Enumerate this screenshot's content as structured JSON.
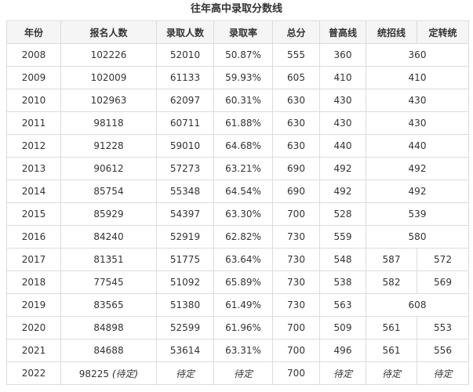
{
  "title": "往年高中录取分数线",
  "table": {
    "header": [
      "年份",
      "报名人数",
      "录取人数",
      "录取率",
      "总分",
      "普高线",
      "统招线",
      "定转统"
    ],
    "rows": [
      [
        "2008",
        "102226",
        "52010",
        "50.87%",
        "555",
        "360",
        "360"
      ],
      [
        "2009",
        "102009",
        "61133",
        "59.93%",
        "605",
        "410",
        "410"
      ],
      [
        "2010",
        "102963",
        "62097",
        "60.31%",
        "630",
        "430",
        "430"
      ],
      [
        "2011",
        "98118",
        "60711",
        "61.88%",
        "630",
        "430",
        "430"
      ],
      [
        "2012",
        "91228",
        "59010",
        "64.68%",
        "630",
        "440",
        "440"
      ],
      [
        "2013",
        "90612",
        "57273",
        "63.21%",
        "690",
        "492",
        "492"
      ],
      [
        "2014",
        "85754",
        "55348",
        "64.54%",
        "690",
        "492",
        "492"
      ],
      [
        "2015",
        "85929",
        "54397",
        "63.30%",
        "700",
        "528",
        "539"
      ],
      [
        "2016",
        "84240",
        "52919",
        "62.82%",
        "730",
        "559",
        "580"
      ],
      [
        "2017",
        "81351",
        "51775",
        "63.64%",
        "730",
        "548",
        "587",
        "572"
      ],
      [
        "2018",
        "77545",
        "51092",
        "65.89%",
        "730",
        "538",
        "582",
        "569"
      ],
      [
        "2019",
        "83565",
        "51380",
        "61.49%",
        "730",
        "563",
        "608"
      ],
      [
        "2020",
        "84898",
        "52599",
        "61.96%",
        "700",
        "509",
        "561",
        "553"
      ],
      [
        "2021",
        "84688",
        "53614",
        "63.31%",
        "700",
        "496",
        "561",
        "556"
      ],
      [
        "2022",
        {
          "value": "98225",
          "note": "(待定)"
        },
        "待定",
        "待定",
        "700",
        "待定",
        "待定",
        "待定"
      ]
    ]
  }
}
